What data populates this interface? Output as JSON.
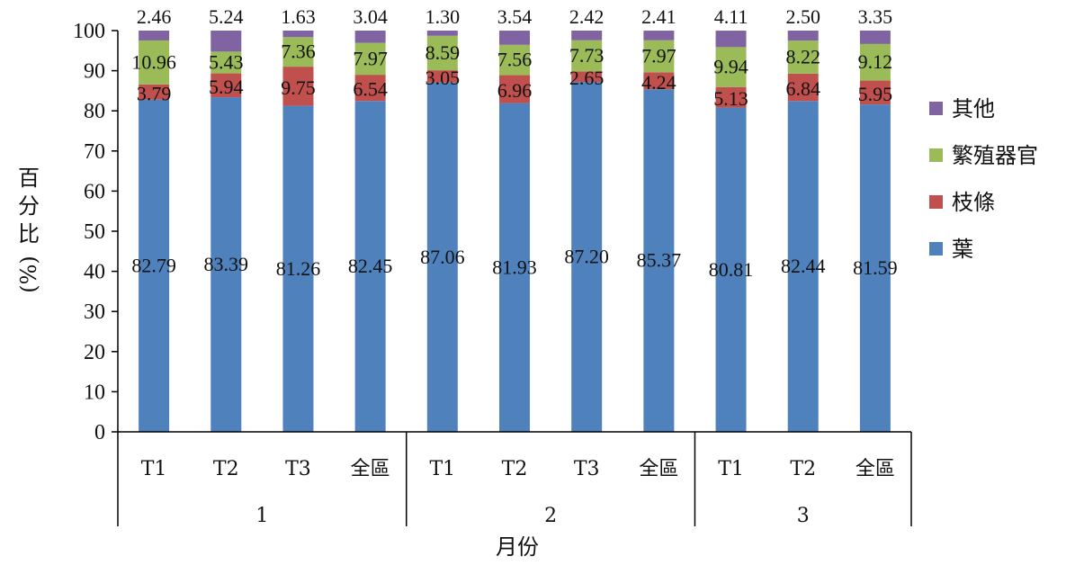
{
  "chart_data": {
    "type": "bar",
    "stacked": true,
    "ylabel": "百分比(%)",
    "xlabel": "月份",
    "ylim": [
      0,
      100
    ],
    "yticks": [
      0,
      10,
      20,
      30,
      40,
      50,
      60,
      70,
      80,
      90,
      100
    ],
    "groups": [
      {
        "label": "1",
        "categories": [
          "T1",
          "T2",
          "T3",
          "全區"
        ]
      },
      {
        "label": "2",
        "categories": [
          "T1",
          "T2",
          "T3",
          "全區"
        ]
      },
      {
        "label": "3",
        "categories": [
          "T1",
          "T2",
          "全區"
        ]
      }
    ],
    "categories": [
      "T1",
      "T2",
      "T3",
      "全區",
      "T1",
      "T2",
      "T3",
      "全區",
      "T1",
      "T2",
      "全區"
    ],
    "series": [
      {
        "name": "葉",
        "color": "#4F81BD",
        "values": [
          82.79,
          83.39,
          81.26,
          82.45,
          87.06,
          81.93,
          87.2,
          85.37,
          80.81,
          82.44,
          81.59
        ],
        "labels": [
          "82.79",
          "83.39",
          "81.26",
          "82.45",
          "87.06",
          "81.93",
          "87.20",
          "85.37",
          "80.81",
          "82.44",
          "81.59"
        ]
      },
      {
        "name": "枝條",
        "color": "#C0504D",
        "values": [
          3.79,
          5.94,
          9.75,
          6.54,
          3.05,
          6.96,
          2.65,
          4.24,
          5.13,
          6.84,
          5.95
        ],
        "labels": [
          "3.79",
          "5.94",
          "9.75",
          "6.54",
          "3.05",
          "6.96",
          "2.65",
          "4.24",
          "5.13",
          "6.84",
          "5.95"
        ]
      },
      {
        "name": "繁殖器官",
        "color": "#9BBB59",
        "values": [
          10.96,
          5.43,
          7.36,
          7.97,
          8.59,
          7.56,
          7.73,
          7.97,
          9.94,
          8.22,
          9.12
        ],
        "labels": [
          "10.96",
          "5.43",
          "7.36",
          "7.97",
          "8.59",
          "7.56",
          "7.73",
          "7.97",
          "9.94",
          "8.22",
          "9.12"
        ]
      },
      {
        "name": "其他",
        "color": "#8064A2",
        "values": [
          2.46,
          5.24,
          1.63,
          3.04,
          1.3,
          3.54,
          2.42,
          2.41,
          4.11,
          2.5,
          3.35
        ],
        "labels": [
          "2.46",
          "5.24",
          "1.63",
          "3.04",
          "1.30",
          "3.54",
          "2.42",
          "2.41",
          "4.11",
          "2.50",
          "3.35"
        ]
      }
    ],
    "legend": "right"
  }
}
